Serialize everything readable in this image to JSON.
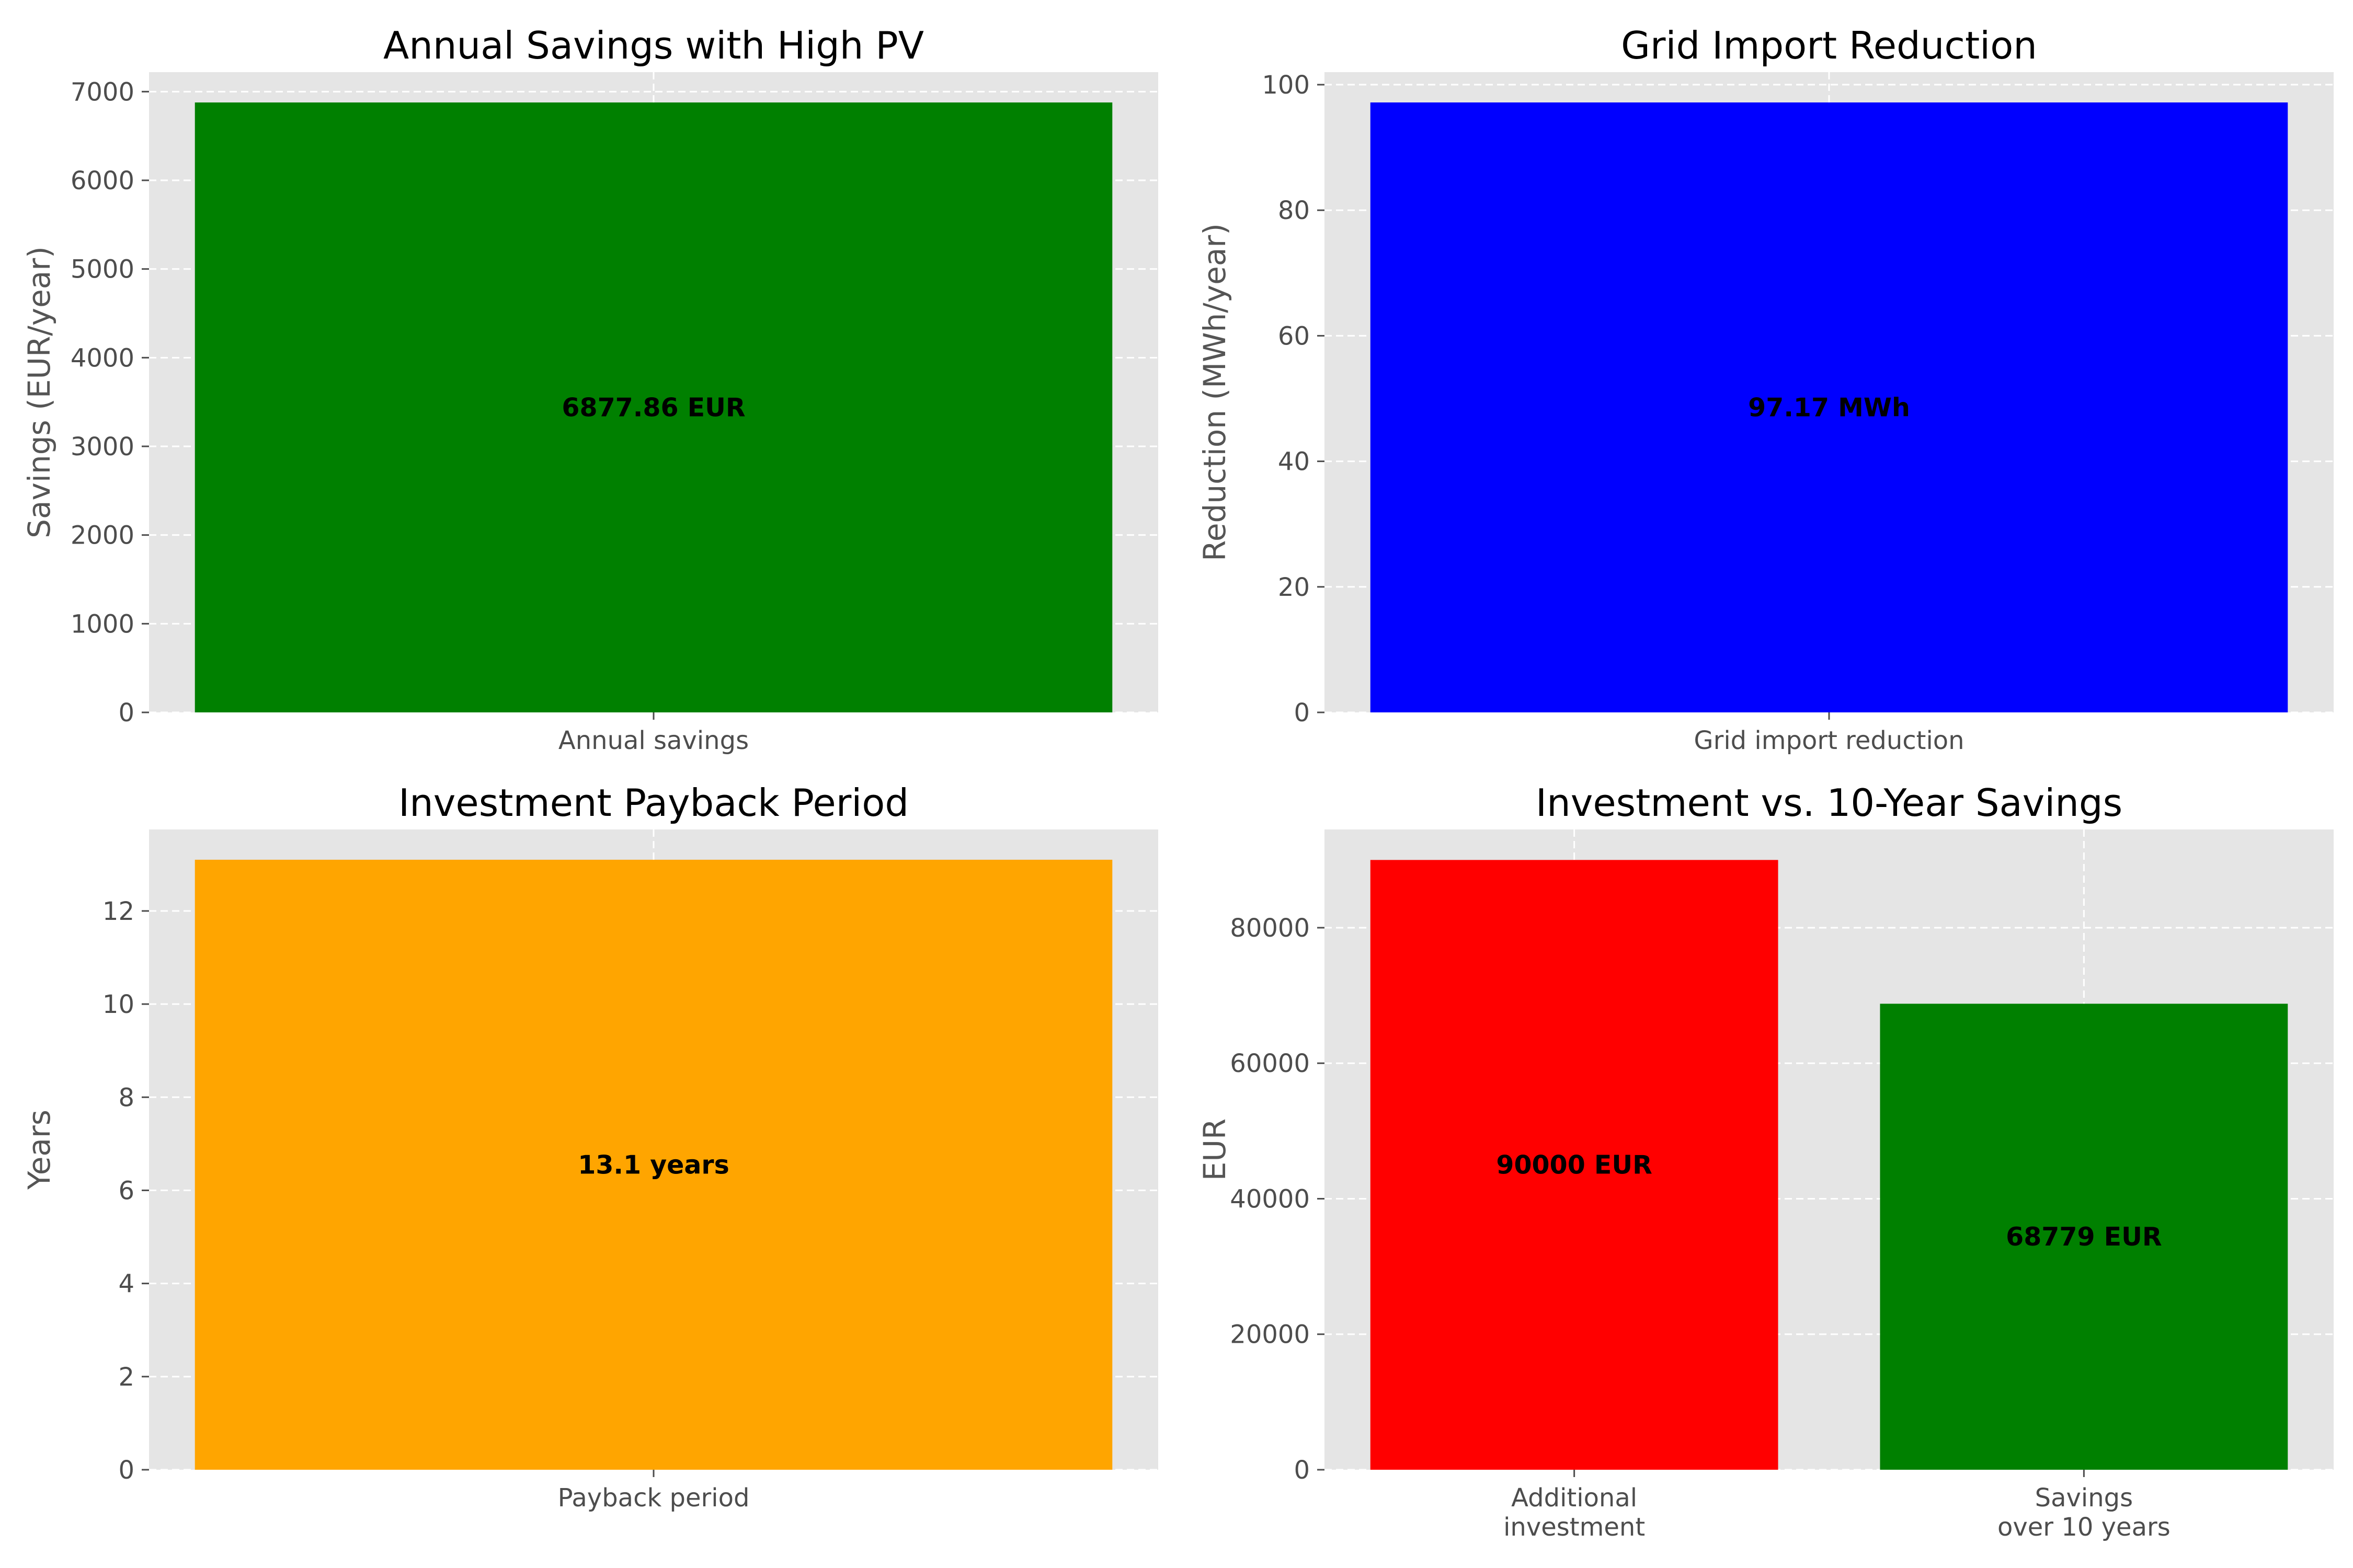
{
  "chart_data": [
    {
      "type": "bar",
      "title": "Annual Savings with High PV",
      "xlabel": "",
      "ylabel": "Savings (EUR/year)",
      "categories": [
        [
          "Annual savings"
        ]
      ],
      "values": [
        6877.86
      ],
      "colors": [
        "#008000"
      ],
      "bar_labels": [
        "6877.86 EUR"
      ],
      "ylim": [
        0,
        7220
      ],
      "yticks": [
        0,
        1000,
        2000,
        3000,
        4000,
        5000,
        6000,
        7000
      ],
      "grid": true
    },
    {
      "type": "bar",
      "title": "Grid Import Reduction",
      "xlabel": "",
      "ylabel": "Reduction (MWh/year)",
      "categories": [
        [
          "Grid import reduction"
        ]
      ],
      "values": [
        97.17
      ],
      "colors": [
        "#0000ff"
      ],
      "bar_labels": [
        "97.17 MWh"
      ],
      "ylim": [
        0,
        102
      ],
      "yticks": [
        0,
        20,
        40,
        60,
        80,
        100
      ],
      "grid": true
    },
    {
      "type": "bar",
      "title": "Investment Payback Period",
      "xlabel": "",
      "ylabel": "Years",
      "categories": [
        [
          "Payback period"
        ]
      ],
      "values": [
        13.1
      ],
      "colors": [
        "#ffa500"
      ],
      "bar_labels": [
        "13.1 years"
      ],
      "ylim": [
        0,
        13.75
      ],
      "yticks": [
        0,
        2,
        4,
        6,
        8,
        10,
        12
      ],
      "grid": true
    },
    {
      "type": "bar",
      "title": "Investment vs. 10-Year Savings",
      "xlabel": "",
      "ylabel": "EUR",
      "categories": [
        [
          "Additional",
          "investment"
        ],
        [
          "Savings",
          "over 10 years"
        ]
      ],
      "values": [
        90000,
        68779
      ],
      "colors": [
        "#ff0000",
        "#008000"
      ],
      "bar_labels": [
        "90000 EUR",
        "68779 EUR"
      ],
      "ylim": [
        0,
        94500
      ],
      "yticks": [
        0,
        20000,
        40000,
        60000,
        80000
      ],
      "grid": true
    }
  ]
}
